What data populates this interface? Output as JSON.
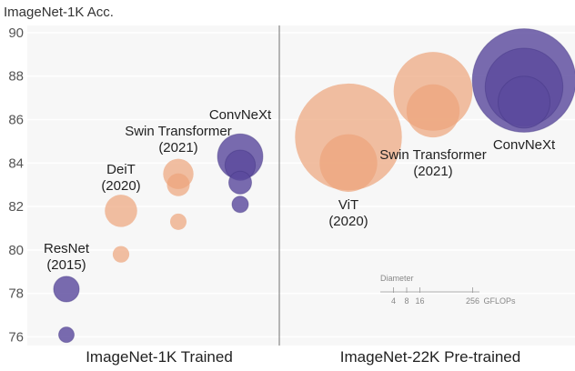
{
  "chart_data": {
    "type": "scatter",
    "title": "",
    "ylabel": "ImageNet-1K Acc.",
    "ylim": [
      75.5,
      90.5
    ],
    "yticks": [
      76,
      78,
      80,
      82,
      84,
      86,
      88,
      90
    ],
    "size_encoding": "Diameter proportional to GFLOPs",
    "colors": {
      "ConvNeXt": "#5b4a9e",
      "Transformer": "#eda47a"
    },
    "panels": [
      {
        "id": "1k",
        "name": "ImageNet-1K Trained"
      },
      {
        "id": "22k",
        "name": "ImageNet-22K Pre-trained"
      }
    ],
    "series": [
      {
        "name": "ResNet",
        "year": "(2015)",
        "family": "ConvNeXt",
        "panel": "1k",
        "x": 0,
        "points": [
          {
            "y": 78.2,
            "gflops": 11
          },
          {
            "y": 76.1,
            "gflops": 4
          }
        ]
      },
      {
        "name": "DeiT",
        "year": "(2020)",
        "family": "Transformer",
        "panel": "1k",
        "x": 1,
        "points": [
          {
            "y": 81.8,
            "gflops": 17.5
          },
          {
            "y": 79.8,
            "gflops": 4.6
          }
        ]
      },
      {
        "name": "Swin Transformer",
        "year": "(2021)",
        "family": "Transformer",
        "panel": "1k",
        "x": 2,
        "points": [
          {
            "y": 83.5,
            "gflops": 15.4
          },
          {
            "y": 83.0,
            "gflops": 8.7
          },
          {
            "y": 81.3,
            "gflops": 4.5
          }
        ]
      },
      {
        "name": "ConvNeXt",
        "year": "",
        "family": "ConvNeXt",
        "panel": "1k",
        "x": 3,
        "points": [
          {
            "y": 84.3,
            "gflops": 34.4
          },
          {
            "y": 83.9,
            "gflops": 15.4
          },
          {
            "y": 83.1,
            "gflops": 8.7
          },
          {
            "y": 82.1,
            "gflops": 4.5
          }
        ]
      },
      {
        "name": "ViT",
        "year": "(2020)",
        "family": "Transformer",
        "panel": "22k",
        "x": 0,
        "points": [
          {
            "y": 85.2,
            "gflops": 190.7
          },
          {
            "y": 84.0,
            "gflops": 55.5
          }
        ]
      },
      {
        "name": "Swin Transformer",
        "year": "(2021)",
        "family": "Transformer",
        "panel": "22k",
        "x": 1,
        "points": [
          {
            "y": 87.3,
            "gflops": 103.9
          },
          {
            "y": 86.4,
            "gflops": 47.1
          }
        ]
      },
      {
        "name": "ConvNeXt",
        "year": "",
        "family": "ConvNeXt",
        "panel": "22k",
        "x": 2,
        "points": [
          {
            "y": 87.8,
            "gflops": 179
          },
          {
            "y": 87.5,
            "gflops": 101
          },
          {
            "y": 86.8,
            "gflops": 45
          }
        ]
      }
    ],
    "legend": {
      "title": "Diameter",
      "ticks": [
        4,
        8,
        16,
        256
      ],
      "unit": "GFLOPs"
    }
  }
}
